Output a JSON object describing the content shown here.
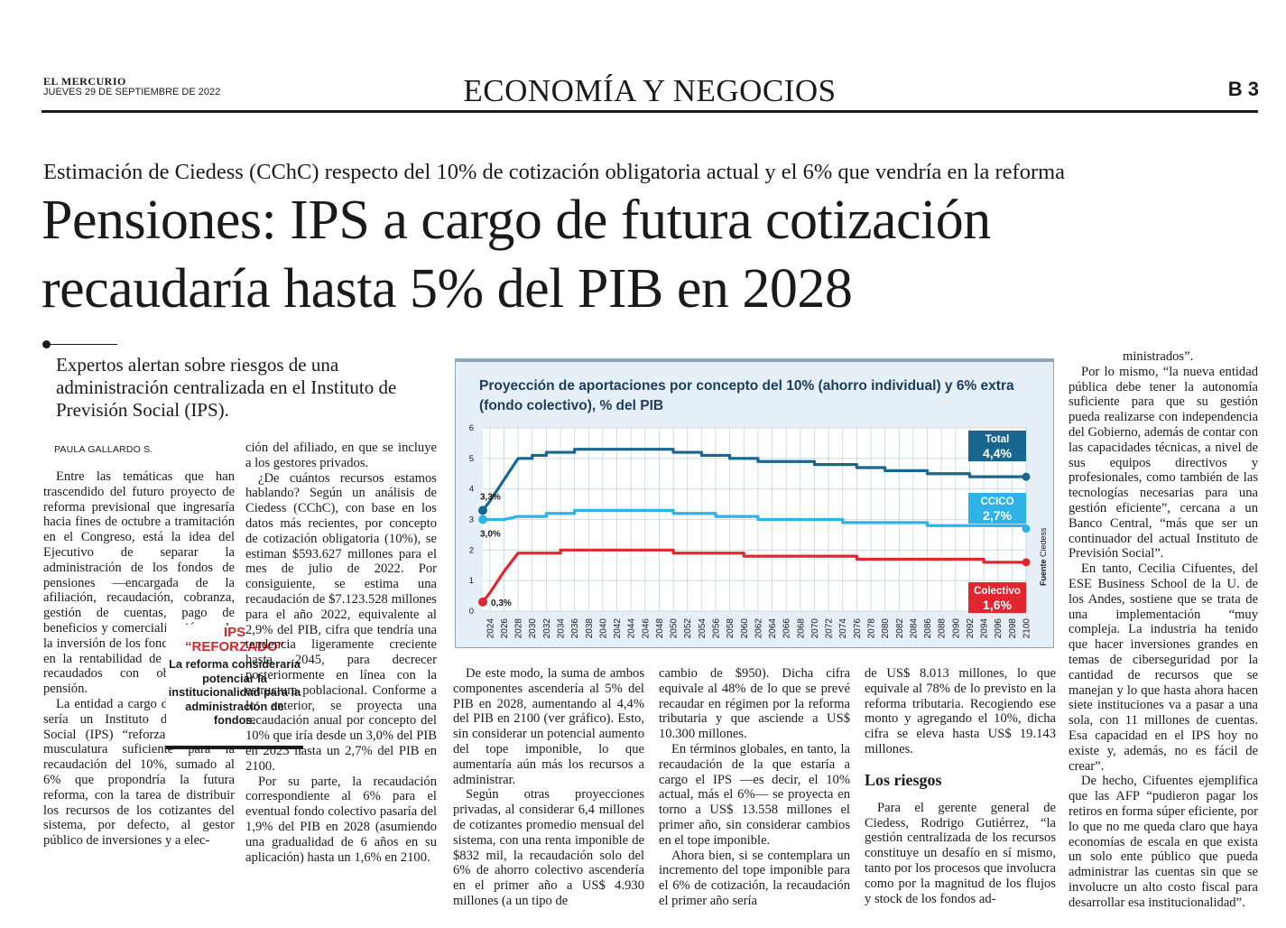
{
  "masthead": {
    "paper_name": "EL MERCURIO",
    "date": "JUEVES 29 DE SEPTIEMBRE DE 2022",
    "section": "ECONOMÍA Y NEGOCIOS",
    "page": "B 3"
  },
  "article": {
    "kicker": "Estimación de Ciedess (CChC) respecto del 10% de cotización obligatoria actual y el 6% que vendría en la reforma",
    "headline_line1": "Pensiones: IPS a cargo de futura cotización",
    "headline_line2": "recaudaría hasta 5% del PIB en 2028",
    "deck": "Expertos alertan sobre riesgos de una administración centralizada en el Instituto de Previsión Social (IPS).",
    "byline": "PAULA GALLARDO S.",
    "col1": [
      "Entre las temáticas que han trascendido del futuro proyecto de reforma previsional que ingresaría hacia fines de octubre a tramitación en el Congreso, está la idea del Ejecutivo de separar la administración de los fondos de pensiones —encargada de la afiliación, recaudación, cobranza, gestión de cuentas, pago de beneficios y comercialización—, de la inversión de los fondos, enfocada en la rentabilidad de los recursos recaudados con objetivos de pensión.",
      "La entidad a cargo de lo primero sería un Instituto de Previsión Social (IPS) “reforzado”, con la musculatura suficiente para la recaudación del 10%, sumado al 6% que propondría la futura reforma, con la tarea de distribuir los recursos de los cotizantes del sistema, por defecto, al gestor público de inversiones y a elec-"
    ],
    "col2": [
      "ción del afiliado, en que se incluye a los gestores privados.",
      "¿De cuántos recursos estamos hablando? Según un análisis de Ciedess (CChC), con base en los datos más recientes, por concepto de cotización obligatoria (10%), se estiman $593.627 millones para el mes de julio de 2022. Por consiguiente, se estima una recaudación de $7.123.528 millones para el año 2022, equivalente al 2,9% del PIB, cifra que tendría una tendencia ligeramente creciente hasta 2045, para decrecer posteriormente en línea con la estructura poblacional. Conforme a lo anterior, se proyecta una recaudación anual por concepto del 10% que iría desde un 3,0% del PIB en 2023 hasta un 2,7% del PIB en 2100.",
      "Por su parte, la recaudación correspondiente al 6% para el eventual fondo colectivo pasaría del 1,9% del PIB en 2028 (asumiendo una gradualidad de 6 años en su aplicación) hasta un 1,6% en 2100."
    ],
    "col3": [
      "De este modo, la suma de ambos componentes ascendería al 5% del PIB en 2028, aumentando al 4,4% del PIB en 2100 (ver gráfico). Esto, sin considerar un potencial aumento del tope imponible, lo que aumentaría aún más los recursos a administrar.",
      "Según otras proyecciones privadas, al considerar 6,4 millones de cotizantes promedio mensual del sistema, con una renta imponible de $832 mil, la recaudación solo del 6% de ahorro colectivo ascendería en el primer año a US$ 4.930 millones (a un tipo de"
    ],
    "col4": [
      "cambio de $950). Dicha cifra equivale al 48% de lo que se prevé recaudar en régimen por la reforma tributaria y que asciende a US$ 10.300 millones.",
      "En términos globales, en tanto, la recaudación de la que estaría a cargo el IPS —es decir, el 10% actual, más el 6%— se proyecta en torno a US$ 13.558 millones el primer año, sin considerar cambios en el tope imponible.",
      "Ahora bien, si se contemplara un incremento del tope imponible para el 6% de cotización, la recaudación el primer año sería"
    ],
    "col5": [
      "de US$ 8.013 millones, lo que equivale al 78% de lo previsto en la reforma tributaria. Recogiendo ese monto y agregando el 10%, dicha cifra se eleva hasta US$ 19.143 millones."
    ],
    "subhead": "Los riesgos",
    "col5b": [
      "Para el gerente general de Ciedess, Rodrigo Gutiérrez, “la gestión centralizada de los recursos constituye un desafío en sí mismo, tanto por los procesos que involucra como por la magnitud de los flujos y stock de los fondos ad-"
    ],
    "col6": [
      "ministrados”.",
      "Por lo mismo, “la nueva entidad pública debe tener la autonomía suficiente para que su gestión pueda realizarse con independencia del Gobierno, además de contar con las capacidades técnicas, a nivel de sus equipos directivos y profesionales, como también de las tecnologías necesarias para una gestión eficiente”, cercana a un Banco Central, “más que ser un continuador del actual Instituto de Previsión Social”.",
      "En tanto, Cecilia Cifuentes, del ESE Business School de la U. de los Andes, sostiene que se trata de una implementación “muy compleja. La industria ha tenido que hacer inversiones grandes en temas de ciberseguridad por la cantidad de recursos que se manejan y lo que hasta ahora hacen siete instituciones va a pasar a una sola, con 11 millones de cuentas. Esa capacidad en el IPS hoy no existe y, además, no es fácil de crear”.",
      "De hecho, Cifuentes ejemplifica que las AFP “pudieron pagar los retiros en forma súper eficiente, por lo que no me queda claro que haya economías de escala en que exista un solo ente público que pueda administrar las cuentas sin que se involucre un alto costo fiscal para desarrollar esa institucionalidad”."
    ]
  },
  "sidebar_box": {
    "label_line1": "IPS",
    "label_line2": "“REFORZADO”",
    "text": "La reforma consideraría potenciar la institucionalidad para la administración de fondos."
  },
  "chart_data": {
    "type": "line",
    "title": "Proyección de aportaciones por concepto del 10% (ahorro individual) y 6% extra (fondo colectivo), % del PIB",
    "source_label": "Fuente",
    "source": "Ciedess",
    "ylim": [
      0,
      6
    ],
    "yticks": [
      "0",
      "1",
      "2",
      "3",
      "4",
      "5",
      "6"
    ],
    "xticks": [
      "2024",
      "2026",
      "2028",
      "2030",
      "2032",
      "2034",
      "2036",
      "2038",
      "2040",
      "2042",
      "2044",
      "2046",
      "2048",
      "2050",
      "2052",
      "2054",
      "2056",
      "2058",
      "2060",
      "2062",
      "2064",
      "2066",
      "2068",
      "2070",
      "2072",
      "2074",
      "2076",
      "2078",
      "2080",
      "2082",
      "2084",
      "2086",
      "2088",
      "2090",
      "2092",
      "2094",
      "2096",
      "2098",
      "2100"
    ],
    "colors": {
      "total": "#17668f",
      "ccico": "#2fb2e6",
      "colectivo": "#e0262e"
    },
    "series": [
      {
        "key": "total",
        "name": "Total",
        "end_label": "4,4%",
        "start_label": "3,3%",
        "x": [
          2023,
          2024,
          2026,
          2028,
          2030,
          2032,
          2034,
          2036,
          2038,
          2040,
          2042,
          2044,
          2046,
          2048,
          2050,
          2052,
          2054,
          2056,
          2058,
          2060,
          2062,
          2064,
          2066,
          2068,
          2070,
          2072,
          2074,
          2076,
          2078,
          2080,
          2082,
          2084,
          2086,
          2088,
          2090,
          2092,
          2094,
          2096,
          2098,
          2100
        ],
        "values": [
          3.3,
          3.6,
          4.3,
          5.0,
          5.1,
          5.2,
          5.2,
          5.3,
          5.3,
          5.3,
          5.3,
          5.3,
          5.3,
          5.3,
          5.2,
          5.2,
          5.1,
          5.1,
          5.0,
          5.0,
          4.9,
          4.9,
          4.9,
          4.9,
          4.8,
          4.8,
          4.8,
          4.7,
          4.7,
          4.6,
          4.6,
          4.6,
          4.5,
          4.5,
          4.5,
          4.4,
          4.4,
          4.4,
          4.4,
          4.4
        ]
      },
      {
        "key": "ccico",
        "name": "CCICO",
        "end_label": "2,7%",
        "start_label": "3,0%",
        "x": [
          2023,
          2024,
          2026,
          2028,
          2030,
          2032,
          2034,
          2036,
          2038,
          2040,
          2042,
          2044,
          2046,
          2048,
          2050,
          2052,
          2054,
          2056,
          2058,
          2060,
          2062,
          2064,
          2066,
          2068,
          2070,
          2072,
          2074,
          2076,
          2078,
          2080,
          2082,
          2084,
          2086,
          2088,
          2090,
          2092,
          2094,
          2096,
          2098,
          2100
        ],
        "values": [
          3.0,
          3.0,
          3.0,
          3.1,
          3.1,
          3.2,
          3.2,
          3.3,
          3.3,
          3.3,
          3.3,
          3.3,
          3.3,
          3.3,
          3.2,
          3.2,
          3.2,
          3.1,
          3.1,
          3.1,
          3.0,
          3.0,
          3.0,
          3.0,
          3.0,
          3.0,
          2.9,
          2.9,
          2.9,
          2.9,
          2.9,
          2.9,
          2.8,
          2.8,
          2.8,
          2.8,
          2.8,
          2.8,
          2.8,
          2.7
        ]
      },
      {
        "key": "colectivo",
        "name": "Colectivo",
        "end_label": "1,6%",
        "start_label": "0,3%",
        "x": [
          2023,
          2024,
          2026,
          2028,
          2030,
          2032,
          2034,
          2036,
          2038,
          2040,
          2042,
          2044,
          2046,
          2048,
          2050,
          2052,
          2054,
          2056,
          2058,
          2060,
          2062,
          2064,
          2066,
          2068,
          2070,
          2072,
          2074,
          2076,
          2078,
          2080,
          2082,
          2084,
          2086,
          2088,
          2090,
          2092,
          2094,
          2096,
          2098,
          2100
        ],
        "values": [
          0.3,
          0.6,
          1.3,
          1.9,
          1.9,
          1.9,
          2.0,
          2.0,
          2.0,
          2.0,
          2.0,
          2.0,
          2.0,
          2.0,
          1.9,
          1.9,
          1.9,
          1.9,
          1.9,
          1.8,
          1.8,
          1.8,
          1.8,
          1.8,
          1.8,
          1.8,
          1.8,
          1.7,
          1.7,
          1.7,
          1.7,
          1.7,
          1.7,
          1.7,
          1.7,
          1.7,
          1.6,
          1.6,
          1.6,
          1.6
        ]
      }
    ]
  }
}
